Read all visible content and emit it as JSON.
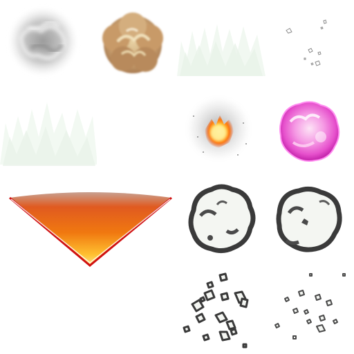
{
  "sprite_sheet": {
    "background": "#ffffff",
    "grid": "4x4",
    "sprites": [
      {
        "icon": "grey-smoke-puff-icon",
        "color": "#bdbdbd"
      },
      {
        "icon": "tan-dust-cloud-icon",
        "color": "#c89a6a"
      },
      {
        "icon": "faint-green-flame-wisps-icon",
        "color": "#eef6ee"
      },
      {
        "icon": "sparse-debris-outlines-icon",
        "color": "#9a9a9a"
      },
      {
        "icon": "faint-green-flame-wisps-icon",
        "color": "#eef6ee"
      },
      {
        "icon": "fire-burst-icon",
        "color": "#ff9a20"
      },
      {
        "icon": "pink-energy-orb-icon",
        "color": "#f060d8"
      },
      {
        "icon": "orange-cone-wedge-icon",
        "color": "#f05a10"
      },
      {
        "icon": "outlined-smoke-cloud-icon",
        "color": "#3a3a3a"
      },
      {
        "icon": "outlined-smoke-cloud-small-icon",
        "color": "#3a3a3a"
      },
      {
        "icon": "debris-fragments-large-icon",
        "color": "#3a3a3a"
      },
      {
        "icon": "debris-fragments-small-icon",
        "color": "#4a4a4a"
      }
    ]
  }
}
